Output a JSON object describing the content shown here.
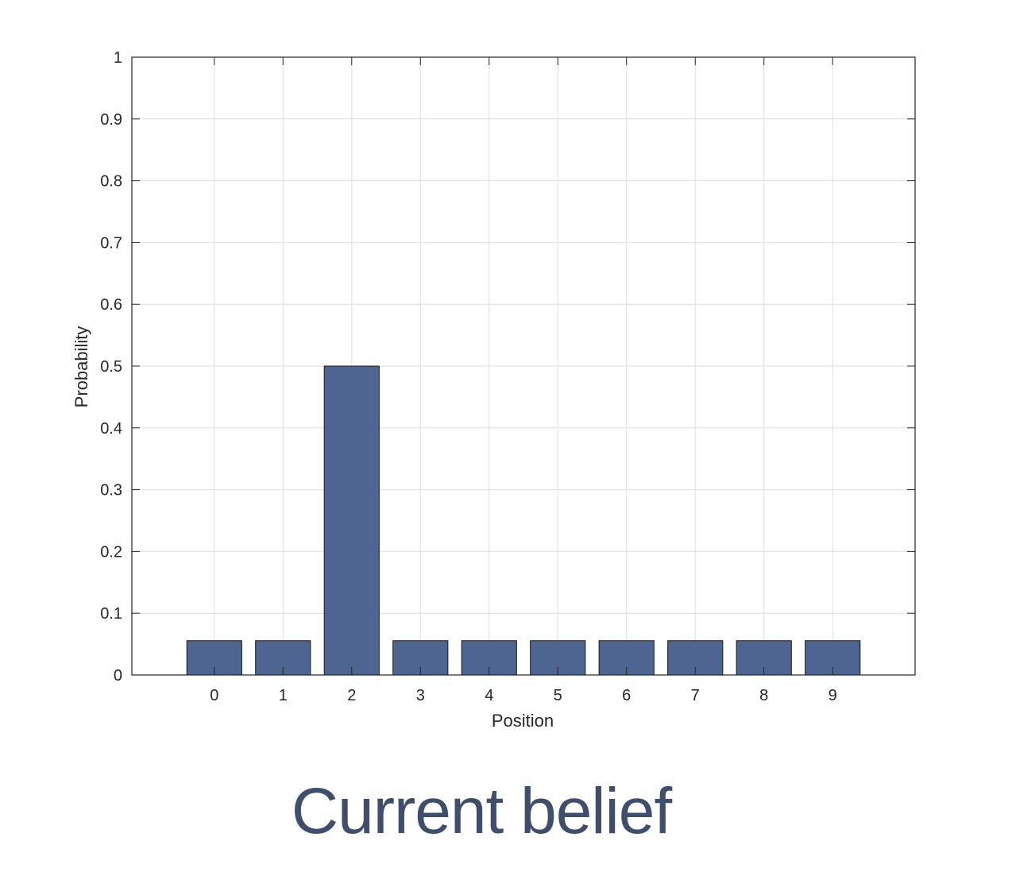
{
  "chart_data": {
    "type": "bar",
    "categories": [
      "0",
      "1",
      "2",
      "3",
      "4",
      "5",
      "6",
      "7",
      "8",
      "9"
    ],
    "values": [
      0.0556,
      0.0556,
      0.5,
      0.0556,
      0.0556,
      0.0556,
      0.0556,
      0.0556,
      0.0556,
      0.0556
    ],
    "xlabel": "Position",
    "ylabel": "Probability",
    "xlim": [
      -1.2,
      10.2
    ],
    "ylim": [
      0,
      1
    ],
    "yticks": [
      0,
      0.1,
      0.2,
      0.3,
      0.4,
      0.5,
      0.6,
      0.7,
      0.8,
      0.9,
      1
    ],
    "ytick_labels": [
      "0",
      "0.1",
      "0.2",
      "0.3",
      "0.4",
      "0.5",
      "0.6",
      "0.7",
      "0.8",
      "0.9",
      "1"
    ],
    "grid": true,
    "bar_color": "#4e6491",
    "caption": "Current belief"
  }
}
